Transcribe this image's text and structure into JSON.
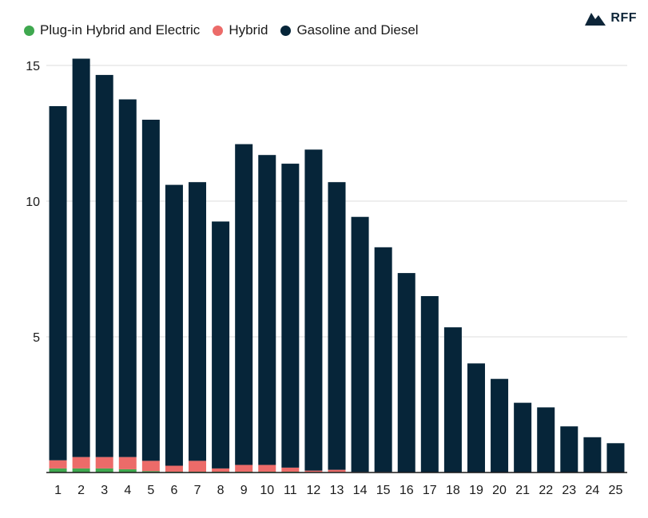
{
  "brand": {
    "name": "RFF"
  },
  "colors": {
    "plugin": "#3fa84f",
    "hybrid": "#ec6b69",
    "gas": "#062539",
    "grid": "#dddddd",
    "axis": "#1a1a1a"
  },
  "chart_data": {
    "type": "bar",
    "stacked": true,
    "title": "",
    "xlabel": "",
    "ylabel": "",
    "categories": [
      "1",
      "2",
      "3",
      "4",
      "5",
      "6",
      "7",
      "8",
      "9",
      "10",
      "11",
      "12",
      "13",
      "14",
      "15",
      "16",
      "17",
      "18",
      "19",
      "20",
      "21",
      "22",
      "23",
      "24",
      "25"
    ],
    "series": [
      {
        "name": "Plug-in Hybrid and Electric",
        "color": "#3fa84f",
        "values": [
          0.15,
          0.15,
          0.15,
          0.12,
          0.05,
          0.03,
          0.03,
          0.03,
          0.03,
          0.03,
          0.03,
          0.02,
          0.02,
          0.0,
          0.0,
          0.0,
          0.0,
          0.0,
          0.0,
          0.0,
          0.0,
          0.0,
          0.0,
          0.0,
          0.0
        ]
      },
      {
        "name": "Hybrid",
        "color": "#ec6b69",
        "values": [
          0.3,
          0.42,
          0.42,
          0.45,
          0.38,
          0.22,
          0.4,
          0.12,
          0.25,
          0.25,
          0.15,
          0.05,
          0.08,
          0.02,
          0.02,
          0.0,
          0.0,
          0.0,
          0.0,
          0.0,
          0.0,
          0.0,
          0.0,
          0.0,
          0.0
        ]
      },
      {
        "name": "Gasoline and Diesel",
        "color": "#062539",
        "values": [
          13.05,
          14.68,
          14.08,
          13.18,
          12.57,
          10.35,
          10.27,
          9.1,
          11.82,
          11.42,
          11.2,
          11.83,
          10.6,
          9.4,
          8.28,
          7.35,
          6.5,
          5.35,
          4.02,
          3.45,
          2.57,
          2.4,
          1.7,
          1.3,
          1.08
        ]
      }
    ],
    "yticks": [
      5,
      10,
      15
    ],
    "ylim": [
      0,
      15.5
    ],
    "grid": true,
    "legend": "top-left"
  }
}
